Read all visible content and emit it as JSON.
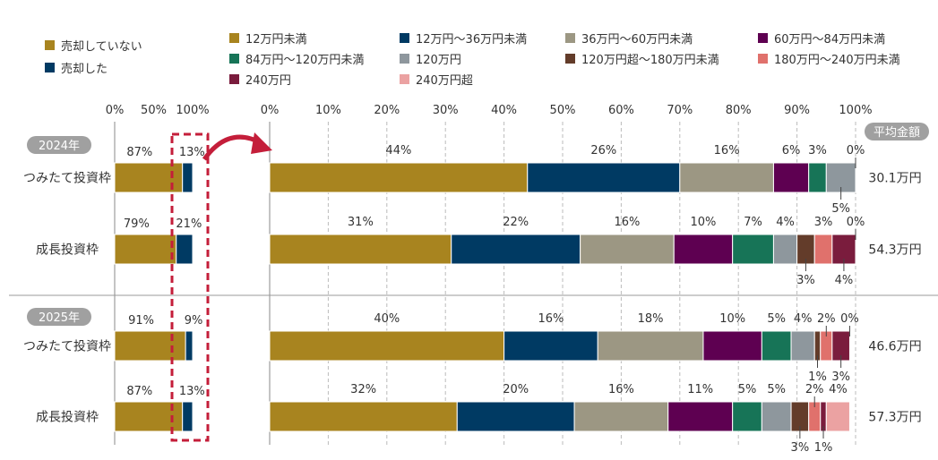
{
  "chart_data": {
    "type": "bar",
    "orientation": "horizontal",
    "stacked": true,
    "legend_left": [
      {
        "name": "売却していない",
        "color": "#a8841f"
      },
      {
        "name": "売却した",
        "color": "#003a63"
      }
    ],
    "legend_right": [
      {
        "name": "12万円未満",
        "color": "#a8841f"
      },
      {
        "name": "12万円～36万円未満",
        "color": "#003a63"
      },
      {
        "name": "36万円～60万円未満",
        "color": "#9c9783"
      },
      {
        "name": "60万円～84万円未満",
        "color": "#5e0051"
      },
      {
        "name": "84万円～120万円未満",
        "color": "#177457"
      },
      {
        "name": "120万円",
        "color": "#8e979d"
      },
      {
        "name": "120万円超～180万円未満",
        "color": "#633c2a"
      },
      {
        "name": "180万円～240万円未満",
        "color": "#e0716c"
      },
      {
        "name": "240万円",
        "color": "#7a1c3d"
      },
      {
        "name": "240万円超",
        "color": "#eba2a2"
      }
    ],
    "left_axis_ticks": [
      "0%",
      "50%",
      "100%"
    ],
    "right_axis_ticks": [
      "0%",
      "10%",
      "20%",
      "30%",
      "40%",
      "50%",
      "60%",
      "70%",
      "80%",
      "90%",
      "100%"
    ],
    "xlim": [
      0,
      100
    ],
    "grid": true,
    "average_header": "平均金額",
    "groups": [
      {
        "year": "2024年",
        "rows": [
          {
            "label": "つみたて投資枠",
            "sold": [
              87,
              13
            ],
            "dist": [
              44,
              26,
              16,
              6,
              3,
              5,
              null,
              null,
              null,
              0
            ],
            "average": "30.1万円"
          },
          {
            "label": "成長投資枠",
            "sold": [
              79,
              21
            ],
            "dist": [
              31,
              22,
              16,
              10,
              7,
              4,
              3,
              3,
              4,
              0
            ],
            "average": "54.3万円"
          }
        ]
      },
      {
        "year": "2025年",
        "rows": [
          {
            "label": "つみたて投資枠",
            "sold": [
              91,
              9
            ],
            "dist": [
              40,
              16,
              18,
              10,
              5,
              4,
              1,
              2,
              3,
              0
            ],
            "average": "46.6万円"
          },
          {
            "label": "成長投資枠",
            "sold": [
              87,
              13
            ],
            "dist": [
              32,
              20,
              16,
              11,
              5,
              5,
              3,
              2,
              1,
              4
            ],
            "average": "57.3万円"
          }
        ]
      }
    ],
    "highlight_color": "#c41e3a"
  }
}
